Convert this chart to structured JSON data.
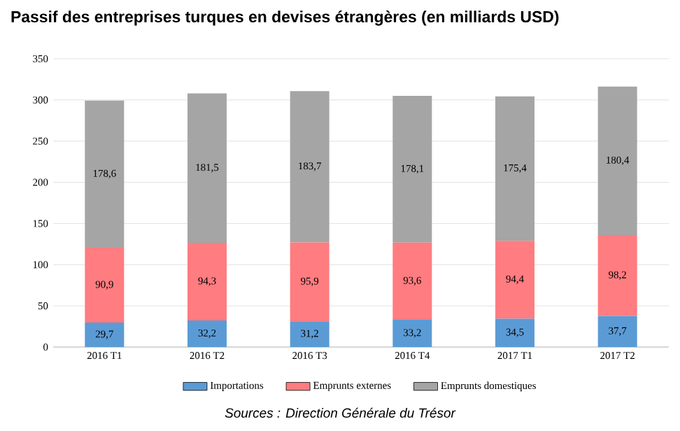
{
  "chart_data": {
    "type": "bar",
    "stacked": true,
    "title": "Passif des entreprises turques en devises étrangères (en milliards USD)",
    "categories": [
      "2016 T1",
      "2016 T2",
      "2016 T3",
      "2016 T4",
      "2017 T1",
      "2017 T2"
    ],
    "series": [
      {
        "name": "Importations",
        "color": "#5b9bd5",
        "values": [
          29.7,
          32.2,
          31.2,
          33.2,
          34.5,
          37.7
        ],
        "value_labels": [
          "29,7",
          "32,2",
          "31,2",
          "33,2",
          "34,5",
          "37,7"
        ]
      },
      {
        "name": "Emprunts externes",
        "color": "#ff7c80",
        "values": [
          90.9,
          94.3,
          95.9,
          93.6,
          94.4,
          98.2
        ],
        "value_labels": [
          "90,9",
          "94,3",
          "95,9",
          "93,6",
          "94,4",
          "98,2"
        ]
      },
      {
        "name": "Emprunts domestiques",
        "color": "#a5a5a5",
        "values": [
          178.6,
          181.5,
          183.7,
          178.1,
          175.4,
          180.4
        ],
        "value_labels": [
          "178,6",
          "181,5",
          "183,7",
          "178,1",
          "175,4",
          "180,4"
        ]
      }
    ],
    "ylim": [
      0,
      350
    ],
    "yticks": [
      0,
      50,
      100,
      150,
      200,
      250,
      300,
      350
    ],
    "grid": "y",
    "legend": "bottom",
    "annotations": [
      "Sources : Direction Générale du Trésor"
    ]
  }
}
